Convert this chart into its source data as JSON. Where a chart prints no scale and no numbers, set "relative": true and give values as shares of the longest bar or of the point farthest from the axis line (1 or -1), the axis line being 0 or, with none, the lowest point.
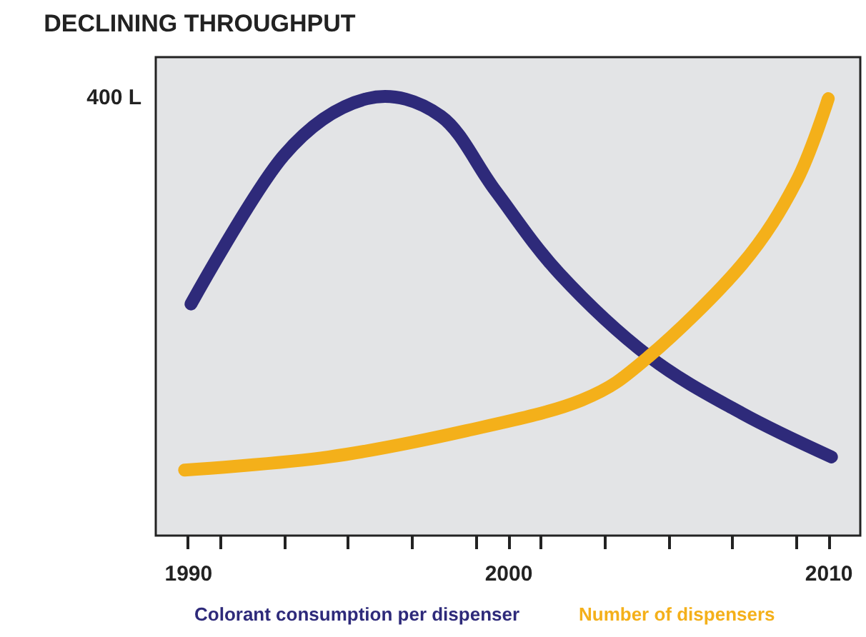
{
  "chart_data": {
    "type": "line",
    "title": "DECLINING THROUGHPUT",
    "relative": true,
    "xlim": [
      1989,
      2011
    ],
    "xticks": [
      1990,
      {
        "value": 1991,
        "label": null
      },
      {
        "value": 1993,
        "label": null
      },
      {
        "value": 1995,
        "label": null
      },
      {
        "value": 1997,
        "label": null
      },
      {
        "value": 1999,
        "label": null
      },
      2000,
      {
        "value": 2001,
        "label": null
      },
      {
        "value": 2003,
        "label": null
      },
      {
        "value": 2005,
        "label": null
      },
      {
        "value": 2007,
        "label": null
      },
      {
        "value": 2009,
        "label": null
      },
      2010
    ],
    "series": [
      {
        "name": "Colorant consumption per dispenser",
        "color": "#2e2a7a",
        "x": [
          1990.1,
          1993.0,
          1995.6,
          1997.9,
          1999.6,
          2001.6,
          2004.4,
          2007.3,
          2010.1
        ],
        "values": [
          0.53,
          0.87,
          1.0,
          0.96,
          0.79,
          0.6,
          0.41,
          0.28,
          0.18
        ]
      },
      {
        "name": "Number of dispensers",
        "color": "#f4b01a",
        "x": [
          1989.9,
          1994.4,
          1998.7,
          2002.3,
          2004.4,
          2007.3,
          2009.0,
          2010.0
        ],
        "values": [
          0.15,
          0.18,
          0.24,
          0.31,
          0.41,
          0.62,
          0.81,
          1.0
        ]
      }
    ],
    "annotations": [
      "400 L"
    ],
    "legend": "bottom",
    "grid": false,
    "marker": "none",
    "line_style": "solid"
  }
}
